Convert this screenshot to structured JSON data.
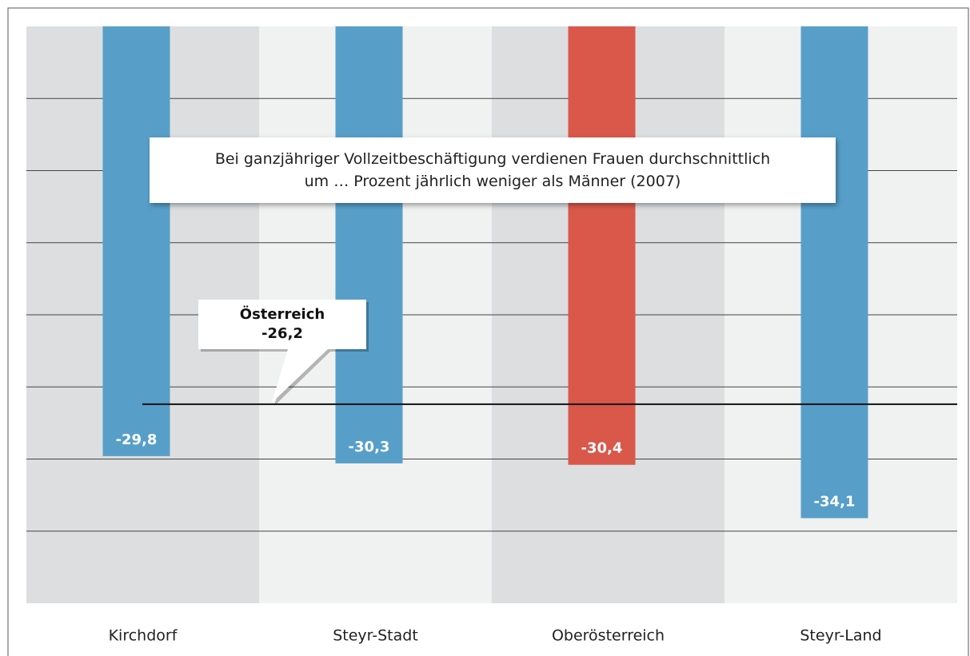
{
  "chart_data": {
    "type": "bar",
    "title": "Bei ganzjähriger Vollzeitbeschäftigung verdienen Frauen durchschnittlich\num … Prozent jährlich weniger als Männer (2007)",
    "categories": [
      "Kirchdorf",
      "Steyr-Stadt",
      "Oberösterreich",
      "Steyr-Land"
    ],
    "values": [
      -29.8,
      -30.3,
      -30.4,
      -34.1
    ],
    "value_labels": [
      "-29,8",
      "-30,3",
      "-30,4",
      "-34,1"
    ],
    "colors": [
      "#579fc9",
      "#579fc9",
      "#d9584a",
      "#579fc9"
    ],
    "ylim": [
      -40,
      0
    ],
    "yticks": [
      -35,
      -30,
      -25,
      -20,
      -15,
      -10,
      -5
    ],
    "grid": true,
    "reference": {
      "label": "Österreich",
      "value": -26.2,
      "value_label": "-26,2"
    }
  }
}
